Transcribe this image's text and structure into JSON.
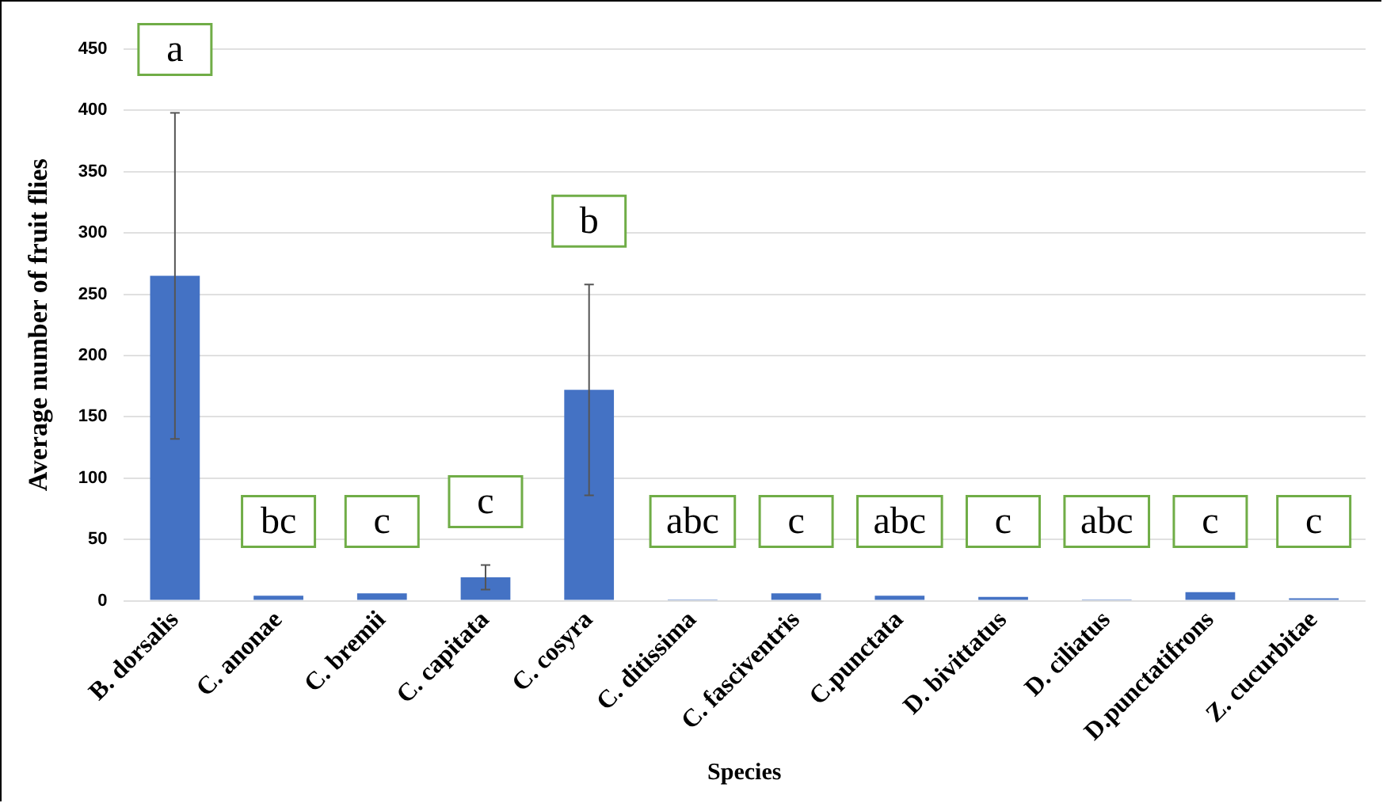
{
  "chart_data": {
    "type": "bar",
    "xlabel": "Species",
    "ylabel": "Average number of fruit flies",
    "categories": [
      "B. dorsalis",
      "C. anonae",
      "C. bremii",
      "C. capitata",
      "C. cosyra",
      "C. ditissima",
      "C. fasciventris",
      "C.punctata",
      "D. bivittatus",
      "D. ciliatus",
      "D.punctatifrons",
      "Z. cucurbitae"
    ],
    "values": [
      265,
      4,
      6,
      19,
      172,
      1,
      6,
      4,
      3,
      1,
      7,
      2
    ],
    "errors": [
      133,
      null,
      null,
      10,
      86,
      null,
      null,
      null,
      null,
      null,
      null,
      null
    ],
    "color": "#4472c4",
    "ylim": [
      0,
      450
    ],
    "yticks": [
      0,
      50,
      100,
      150,
      200,
      250,
      300,
      350,
      400,
      450
    ],
    "grid": "y",
    "legend": false,
    "annotations": [
      "a",
      "bc",
      "c",
      "c",
      "b",
      "abc",
      "c",
      "abc",
      "c",
      "abc",
      "c",
      "c"
    ]
  }
}
